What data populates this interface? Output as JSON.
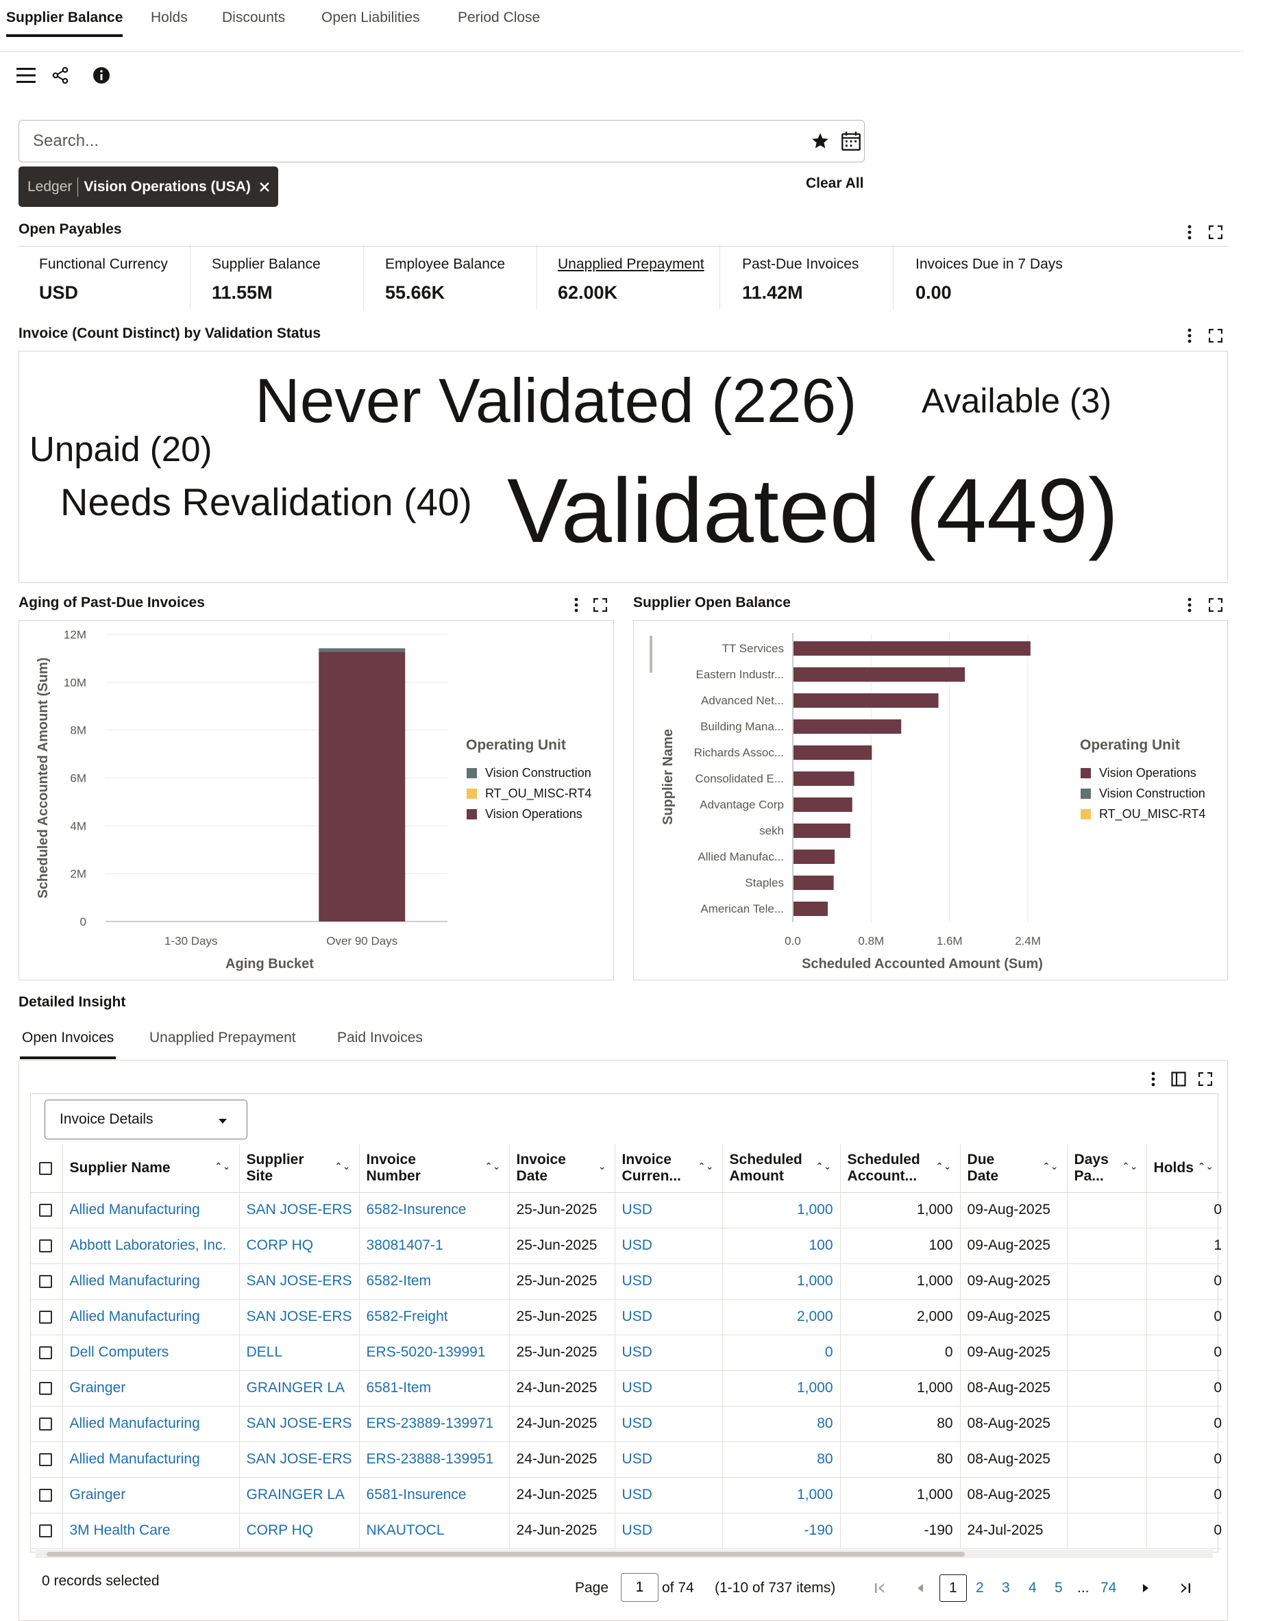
{
  "top_tabs": [
    "Supplier Balance",
    "Holds",
    "Discounts",
    "Open Liabilities",
    "Period Close"
  ],
  "icons": {
    "menu": "hamburger-icon",
    "share": "share-icon",
    "info": "info-icon",
    "favorite": "star-icon",
    "calendar": "calendar-icon"
  },
  "search": {
    "placeholder": "Search...",
    "value": ""
  },
  "filter_chip": {
    "label": "Ledger",
    "value": "Vision Operations (USA)"
  },
  "clear_all": "Clear All",
  "open_payables": {
    "title": "Open Payables",
    "kpis": [
      {
        "label": "Functional Currency",
        "value": "USD"
      },
      {
        "label": "Supplier Balance",
        "value": "11.55M"
      },
      {
        "label": "Employee Balance",
        "value": "55.66K"
      },
      {
        "label": "Unapplied Prepayment",
        "value": "62.00K"
      },
      {
        "label": "Past-Due Invoices",
        "value": "11.42M"
      },
      {
        "label": "Invoices Due in 7 Days",
        "value": "0.00"
      }
    ]
  },
  "tag_cloud": {
    "title": "Invoice (Count Distinct) by Validation Status",
    "tags": [
      {
        "text": "Never Validated (226)",
        "count": 226
      },
      {
        "text": "Available (3)",
        "count": 3
      },
      {
        "text": "Unpaid (20)",
        "count": 20
      },
      {
        "text": "Needs Revalidation (40)",
        "count": 40
      },
      {
        "text": "Validated (449)",
        "count": 449
      }
    ]
  },
  "colors": {
    "vision_operations": "#6b3a44",
    "vision_construction": "#627272",
    "rt_ou_misc": "#f7c15b"
  },
  "chart_data": [
    {
      "type": "bar",
      "title": "Aging of Past-Due Invoices",
      "stacked": true,
      "categories": [
        "1-30 Days",
        "Over 90 Days"
      ],
      "series": [
        {
          "name": "Vision Operations",
          "values": [
            0,
            11280000
          ]
        },
        {
          "name": "RT_OU_MISC-RT4",
          "values": [
            0,
            0
          ]
        },
        {
          "name": "Vision Construction",
          "values": [
            0,
            140000
          ]
        }
      ],
      "xlabel": "Aging Bucket",
      "ylabel": "Scheduled Accounted Amount (Sum)",
      "ylim": [
        0,
        12000000
      ],
      "yticks": [
        "0",
        "2M",
        "4M",
        "6M",
        "8M",
        "10M",
        "12M"
      ],
      "legend_title": "Operating Unit",
      "legend_entries": [
        "Vision Construction",
        "RT_OU_MISC-RT4",
        "Vision Operations"
      ],
      "legend": "right",
      "grid": true
    },
    {
      "type": "bar",
      "orientation": "horizontal",
      "title": "Supplier Open Balance",
      "categories": [
        "TT Services",
        "Eastern Industr...",
        "Advanced Net...",
        "Building Mana...",
        "Richards Assoc...",
        "Consolidated E...",
        "Advantage Corp",
        "sekh",
        "Allied Manufac...",
        "Staples",
        "American Tele..."
      ],
      "series": [
        {
          "name": "Vision Operations",
          "values": [
            2420000,
            1750000,
            1480000,
            1100000,
            800000,
            620000,
            600000,
            580000,
            420000,
            410000,
            350000
          ]
        }
      ],
      "xlabel": "Scheduled Accounted Amount (Sum)",
      "ylabel": "Supplier Name",
      "xlim": [
        0,
        2800000
      ],
      "xticks": [
        "0.0",
        "0.8M",
        "1.6M",
        "2.4M"
      ],
      "legend_title": "Operating Unit",
      "legend_entries": [
        "Vision Operations",
        "Vision Construction",
        "RT_OU_MISC-RT4"
      ],
      "legend": "right",
      "grid": true
    }
  ],
  "detailed_insight": {
    "title": "Detailed Insight",
    "tabs": [
      "Open Invoices",
      "Unapplied Prepayment",
      "Paid Invoices"
    ],
    "view_select": "Invoice Details",
    "columns": [
      {
        "l1": "Supplier Name",
        "l2": ""
      },
      {
        "l1": "Supplier",
        "l2": "Site"
      },
      {
        "l1": "Invoice",
        "l2": "Number"
      },
      {
        "l1": "Invoice",
        "l2": "Date"
      },
      {
        "l1": "Invoice",
        "l2": "Curren..."
      },
      {
        "l1": "Scheduled",
        "l2": "Amount"
      },
      {
        "l1": "Scheduled",
        "l2": "Account..."
      },
      {
        "l1": "Due",
        "l2": "Date"
      },
      {
        "l1": "Days",
        "l2": "Pa..."
      },
      {
        "l1": "Holds",
        "l2": ""
      }
    ],
    "rows": [
      {
        "supplier": "Allied Manufacturing",
        "site": "SAN JOSE-ERS",
        "number": "6582-Insurence",
        "date": "25-Jun-2025",
        "currency": "USD",
        "amount": "1,000",
        "accounted": "1,000",
        "due": "09-Aug-2025",
        "days": "",
        "holds": "0"
      },
      {
        "supplier": "Abbott Laboratories, Inc.",
        "site": "CORP HQ",
        "number": "38081407-1",
        "date": "25-Jun-2025",
        "currency": "USD",
        "amount": "100",
        "accounted": "100",
        "due": "09-Aug-2025",
        "days": "",
        "holds": "1"
      },
      {
        "supplier": "Allied Manufacturing",
        "site": "SAN JOSE-ERS",
        "number": "6582-Item",
        "date": "25-Jun-2025",
        "currency": "USD",
        "amount": "1,000",
        "accounted": "1,000",
        "due": "09-Aug-2025",
        "days": "",
        "holds": "0"
      },
      {
        "supplier": "Allied Manufacturing",
        "site": "SAN JOSE-ERS",
        "number": "6582-Freight",
        "date": "25-Jun-2025",
        "currency": "USD",
        "amount": "2,000",
        "accounted": "2,000",
        "due": "09-Aug-2025",
        "days": "",
        "holds": "0"
      },
      {
        "supplier": "Dell Computers",
        "site": "DELL",
        "number": "ERS-5020-139991",
        "date": "25-Jun-2025",
        "currency": "USD",
        "amount": "0",
        "accounted": "0",
        "due": "09-Aug-2025",
        "days": "",
        "holds": "0"
      },
      {
        "supplier": "Grainger",
        "site": "GRAINGER LA",
        "number": "6581-Item",
        "date": "24-Jun-2025",
        "currency": "USD",
        "amount": "1,000",
        "accounted": "1,000",
        "due": "08-Aug-2025",
        "days": "",
        "holds": "0"
      },
      {
        "supplier": "Allied Manufacturing",
        "site": "SAN JOSE-ERS",
        "number": "ERS-23889-139971",
        "date": "24-Jun-2025",
        "currency": "USD",
        "amount": "80",
        "accounted": "80",
        "due": "08-Aug-2025",
        "days": "",
        "holds": "0"
      },
      {
        "supplier": "Allied Manufacturing",
        "site": "SAN JOSE-ERS",
        "number": "ERS-23888-139951",
        "date": "24-Jun-2025",
        "currency": "USD",
        "amount": "80",
        "accounted": "80",
        "due": "08-Aug-2025",
        "days": "",
        "holds": "0"
      },
      {
        "supplier": "Grainger",
        "site": "GRAINGER LA",
        "number": "6581-Insurence",
        "date": "24-Jun-2025",
        "currency": "USD",
        "amount": "1,000",
        "accounted": "1,000",
        "due": "08-Aug-2025",
        "days": "",
        "holds": "0"
      },
      {
        "supplier": "3M Health Care",
        "site": "CORP HQ",
        "number": "NKAUTOCL",
        "date": "24-Jun-2025",
        "currency": "USD",
        "amount": "-190",
        "accounted": "-190",
        "due": "24-Jul-2025",
        "days": "",
        "holds": "0"
      }
    ],
    "records_selected": "0 records selected",
    "pager": {
      "page_label": "Page",
      "page_value": "1",
      "of_label": "of 74",
      "items": "(1-10 of 737 items)",
      "pages": [
        "1",
        "2",
        "3",
        "4",
        "5",
        "...",
        "74"
      ]
    }
  }
}
